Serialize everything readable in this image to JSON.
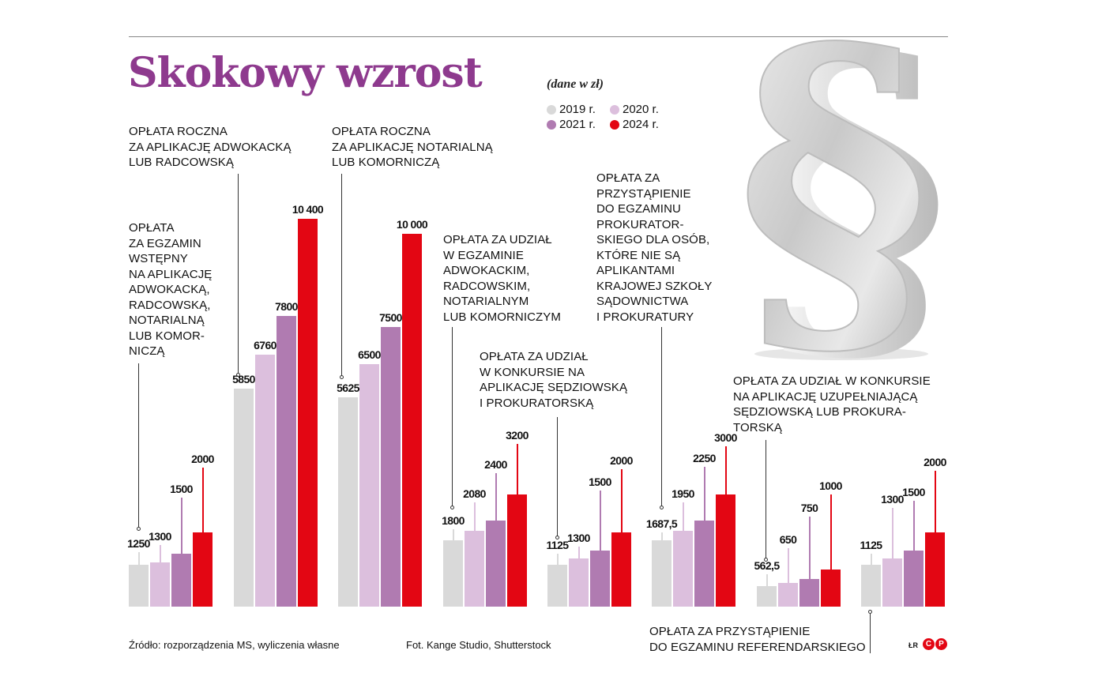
{
  "header": {
    "title": "Skokowy wzrost",
    "unit_note": "(dane w zł)"
  },
  "legend": [
    {
      "label": "2019 r.",
      "color": "#d9d9d9"
    },
    {
      "label": "2020 r.",
      "color": "#dcbfdd"
    },
    {
      "label": "2021 r.",
      "color": "#b07bb1"
    },
    {
      "label": "2024 r.",
      "color": "#e30613"
    }
  ],
  "captions": {
    "g1": "OPŁATA\nZA EGZAMIN\nWSTĘPNY\nNA APLIKACJĘ\nADWOKACKĄ,\nRADCOWSKĄ,\nNOTARIALNĄ\nLUB KOMOR-\nNICZĄ",
    "g2": "OPŁATA ROCZNA\nZA APLIKACJĘ ADWOKACKĄ\nLUB RADCOWSKĄ",
    "g3": "OPŁATA ROCZNA\nZA APLIKACJĘ NOTARIALNĄ\nLUB KOMORNICZĄ",
    "g4": "OPŁATA ZA UDZIAŁ\nW EGZAMINIE\nADWOKACKIM,\nRADCOWSKIM,\nNOTARIALNYM\nLUB KOMORNICZYM",
    "g5": "OPŁATA ZA UDZIAŁ\nW KONKURSIE NA\nAPLIKACJĘ SĘDZIOWSKĄ\nI PROKURATORSKĄ",
    "g6": "OPŁATA ZA\nPRZYSTĄPIENIE\nDO EGZAMINU\nPROKURATOR-\nSKIEGO DLA OSÓB,\nKTÓRE NIE SĄ\nAPLIKANTAMI\nKRAJOWEJ SZKOŁY\nSĄDOWNICTWA\nI PROKURATURY",
    "g7": "OPŁATA ZA UDZIAŁ W KONKURSIE\nNA APLIKACJĘ UZUPEŁNIAJĄCĄ\nSĘDZIOWSKĄ LUB PROKURA-\nTORSKĄ",
    "g8": "OPŁATA ZA PRZYSTĄPIENIE\nDO EGZAMINU REFERENDARSKIEGO"
  },
  "footer": {
    "source": "Źródło: rozporządzenia MS, wyliczenia własne",
    "photo": "Fot. Kange Studio, Shutterstock",
    "author": "ŁR",
    "brand_left": "C",
    "brand_right": "P"
  },
  "chart_data": {
    "type": "bar",
    "title": "Skokowy wzrost",
    "subtitle": "(dane w zł)",
    "xlabel": "",
    "ylabel": "zł",
    "grid": false,
    "legend_position": "top-right",
    "categories": [
      "Opłata za egzamin wstępny na aplikację adwokacką, radcowską, notarialną lub komorniczą",
      "Opłata roczna za aplikację adwokacką lub radcowską",
      "Opłata roczna za aplikację notarialną lub komorniczą",
      "Opłata za udział w egzaminie adwokackim, radcowskim, notarialnym lub komorniczym",
      "Opłata za udział w konkursie na aplikację sędziowską i prokuratorską",
      "Opłata za przystąpienie do egzaminu prokuratorskiego dla osób, które nie są aplikantami Krajowej Szkoły Sądownictwa i Prokuratury",
      "Opłata za udział w konkursie na aplikację uzupełniającą sędziowską lub prokuratorską",
      "Opłata za przystąpienie do egzaminu referendarskiego"
    ],
    "series": [
      {
        "name": "2019 r.",
        "color": "#d9d9d9",
        "values": [
          1250,
          5850,
          5625,
          1800,
          1125,
          1687.5,
          562.5,
          1125
        ],
        "labels": [
          "1250",
          "5850",
          "5625",
          "1800",
          "1125",
          "1687,5",
          "562,5",
          "1125"
        ]
      },
      {
        "name": "2020 r.",
        "color": "#dcbfdd",
        "values": [
          1300,
          6760,
          6500,
          2080,
          1300,
          1950,
          650,
          1300
        ],
        "labels": [
          "1300",
          "6760",
          "6500",
          "2080",
          "1300",
          "1950",
          "650",
          "1300"
        ]
      },
      {
        "name": "2021 r.",
        "color": "#b07bb1",
        "values": [
          1500,
          7800,
          7500,
          2400,
          1500,
          2250,
          750,
          1500
        ],
        "labels": [
          "1500",
          "7800",
          "7500",
          "2400",
          "1500",
          "2250",
          "750",
          "1500"
        ]
      },
      {
        "name": "2024 r.",
        "color": "#e30613",
        "values": [
          2000,
          10400,
          10000,
          3200,
          2000,
          3000,
          1000,
          2000
        ],
        "labels": [
          "2000",
          "10 400",
          "10 000",
          "3200",
          "2000",
          "3000",
          "1000",
          "2000"
        ]
      }
    ]
  }
}
